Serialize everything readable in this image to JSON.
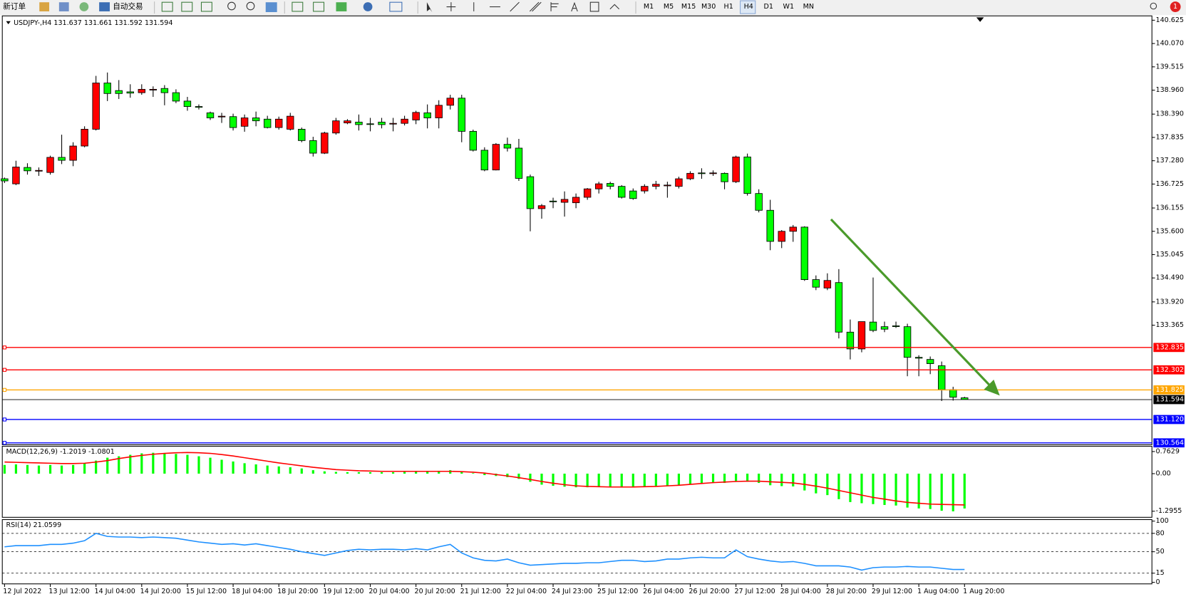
{
  "toolbar": {
    "new_order": "新订单",
    "auto_trading": "自动交易",
    "timeframes": [
      "M1",
      "M5",
      "M15",
      "M30",
      "H1",
      "H4",
      "D1",
      "W1",
      "MN"
    ],
    "notifications": 1
  },
  "chart_data": [
    {
      "type": "candlestick",
      "symbol": "USDJPY-,H4",
      "up_color": "#ff0000",
      "down_color": "#00ff00",
      "grid": false,
      "categories": [
        "12 Jul 2022",
        null,
        null,
        null,
        "13 Jul 12:00",
        null,
        null,
        null,
        "14 Jul 04:00",
        null,
        null,
        null,
        "14 Jul 20:00",
        null,
        null,
        null,
        "15 Jul 12:00",
        null,
        null,
        null,
        "18 Jul 04:00",
        null,
        null,
        null,
        "18 Jul 20:00",
        null,
        null,
        null,
        "19 Jul 12:00",
        null,
        null,
        null,
        "20 Jul 04:00",
        null,
        null,
        null,
        "20 Jul 20:00",
        null,
        null,
        null,
        "21 Jul 12:00",
        null,
        null,
        null,
        "22 Jul 04:00",
        null,
        null,
        null,
        "24 Jul 23:00",
        null,
        null,
        null,
        "25 Jul 12:00",
        null,
        null,
        null,
        "26 Jul 04:00",
        null,
        null,
        null,
        "26 Jul 20:00",
        null,
        null,
        null,
        "27 Jul 12:00",
        null,
        null,
        null,
        "28 Jul 04:00",
        null,
        null,
        null,
        "28 Jul 20:00",
        null,
        null,
        null,
        "29 Jul 12:00",
        null,
        null,
        null,
        "1 Aug 04:00",
        null,
        null,
        null,
        "1 Aug 20:00"
      ],
      "open": [
        136.85,
        136.73,
        137.12,
        137.04,
        137.0,
        137.36,
        137.29,
        137.63,
        138.03,
        139.13,
        138.95,
        138.92,
        138.9,
        138.97,
        139.0,
        138.9,
        138.7,
        138.57,
        138.42,
        138.33,
        138.33,
        138.1,
        138.3,
        138.27,
        138.07,
        138.03,
        138.03,
        137.76,
        137.46,
        137.94,
        138.18,
        138.2,
        138.16,
        138.2,
        138.16,
        138.17,
        138.25,
        138.42,
        138.3,
        138.6,
        138.77,
        137.98,
        137.53,
        137.06,
        137.67,
        137.58,
        136.9,
        136.14,
        136.32,
        136.29,
        136.28,
        136.41,
        136.61,
        136.74,
        136.67,
        136.56,
        136.56,
        136.67,
        136.69,
        136.67,
        136.85,
        136.99,
        136.98,
        136.98,
        136.78,
        137.37,
        136.5,
        136.1,
        135.36,
        135.6,
        135.7,
        134.45,
        134.25,
        134.38,
        133.2,
        132.8,
        133.44,
        133.33,
        133.35,
        133.33,
        132.6,
        132.55,
        132.4,
        131.83,
        131.637
      ],
      "high": [
        136.88,
        137.28,
        137.22,
        137.12,
        137.4,
        137.9,
        137.72,
        138.1,
        139.3,
        139.38,
        139.2,
        139.1,
        139.1,
        139.05,
        139.08,
        138.98,
        138.8,
        138.62,
        138.45,
        138.42,
        138.4,
        138.38,
        138.45,
        138.35,
        138.33,
        138.42,
        138.07,
        137.85,
        137.97,
        138.3,
        138.27,
        138.38,
        138.3,
        138.3,
        138.3,
        138.35,
        138.47,
        138.62,
        138.72,
        138.85,
        138.85,
        138.02,
        137.6,
        137.7,
        137.83,
        137.8,
        136.95,
        136.25,
        136.4,
        136.55,
        136.5,
        136.63,
        136.78,
        136.78,
        136.7,
        136.62,
        136.72,
        136.8,
        136.78,
        136.9,
        137.03,
        137.1,
        137.05,
        137.0,
        137.4,
        137.45,
        136.6,
        136.35,
        135.63,
        135.75,
        135.72,
        134.55,
        134.6,
        134.7,
        133.5,
        133.45,
        134.5,
        133.45,
        133.45,
        133.4,
        132.65,
        132.62,
        132.5,
        131.9,
        131.661
      ],
      "low": [
        136.75,
        136.7,
        136.95,
        136.92,
        136.95,
        137.2,
        137.15,
        137.6,
        138.0,
        138.7,
        138.75,
        138.78,
        138.85,
        138.8,
        138.6,
        138.65,
        138.47,
        138.5,
        138.25,
        138.18,
        138.0,
        137.97,
        138.1,
        138.05,
        138.02,
        138.0,
        137.72,
        137.38,
        137.44,
        137.9,
        138.15,
        138.0,
        137.98,
        138.05,
        137.98,
        138.12,
        138.15,
        138.05,
        138.05,
        138.5,
        137.72,
        137.5,
        137.03,
        137.05,
        137.5,
        136.8,
        135.6,
        135.9,
        136.15,
        135.95,
        136.15,
        136.35,
        136.5,
        136.6,
        136.38,
        136.35,
        136.5,
        136.6,
        136.4,
        136.62,
        136.82,
        136.85,
        136.92,
        136.6,
        136.75,
        136.45,
        136.05,
        135.15,
        135.2,
        135.35,
        134.42,
        134.2,
        134.2,
        133.05,
        132.55,
        132.72,
        133.2,
        133.2,
        133.3,
        132.15,
        132.15,
        132.2,
        131.56,
        131.57,
        131.592
      ],
      "close": [
        136.8,
        137.13,
        137.04,
        137.05,
        137.36,
        137.29,
        137.63,
        138.03,
        139.13,
        138.88,
        138.88,
        138.89,
        138.98,
        138.98,
        138.9,
        138.7,
        138.57,
        138.56,
        138.3,
        138.34,
        138.07,
        138.3,
        138.23,
        138.07,
        138.27,
        138.34,
        137.76,
        137.46,
        137.94,
        138.23,
        138.23,
        138.14,
        138.15,
        138.14,
        138.17,
        138.27,
        138.43,
        138.3,
        138.6,
        138.77,
        137.98,
        137.53,
        137.06,
        137.67,
        137.58,
        136.86,
        136.14,
        136.21,
        136.31,
        136.36,
        136.41,
        136.61,
        136.73,
        136.67,
        136.41,
        136.38,
        136.67,
        136.72,
        136.7,
        136.85,
        136.98,
        136.98,
        136.99,
        136.78,
        137.37,
        136.5,
        136.1,
        135.36,
        135.6,
        135.7,
        134.45,
        134.27,
        134.43,
        133.2,
        132.8,
        133.45,
        133.24,
        133.27,
        133.34,
        132.6,
        132.58,
        132.45,
        131.83,
        131.65,
        131.594
      ],
      "ylim": [
        130.52,
        140.71
      ],
      "yticks": [
        140.625,
        {
          "value": 140.07,
          "label": "140.070"
        },
        139.515,
        {
          "value": 138.96,
          "label": "138.960"
        },
        {
          "value": 138.39,
          "label": "138.390"
        },
        137.835,
        {
          "value": 137.28,
          "label": "137.280"
        },
        136.725,
        136.155,
        {
          "value": 135.6,
          "label": "135.600"
        },
        135.045,
        {
          "value": 134.49,
          "label": "134.490"
        },
        {
          "value": 133.92,
          "label": "133.920"
        },
        133.365
      ],
      "levels": [
        {
          "value": 132.835,
          "color": "#ff0000"
        },
        {
          "value": 132.302,
          "color": "#ff0000"
        },
        {
          "value": 131.825,
          "color": "#ffa500"
        },
        {
          "value": 131.12,
          "label": "131.120",
          "color": "#0000ff"
        },
        {
          "value": 130.564,
          "color": "#0000ff"
        }
      ]
    },
    {
      "type": "macd",
      "title": "MACD(12,26,9)",
      "color": "#00ff00",
      "signal_color": "#ff0000",
      "values": [
        0.3,
        0.32,
        0.3,
        0.28,
        0.3,
        0.28,
        0.3,
        0.35,
        0.45,
        0.55,
        0.6,
        0.65,
        0.7,
        0.72,
        0.7,
        0.68,
        0.65,
        0.6,
        0.55,
        0.48,
        0.42,
        0.36,
        0.32,
        0.28,
        0.25,
        0.22,
        0.18,
        0.12,
        0.08,
        0.06,
        0.05,
        0.05,
        0.05,
        0.05,
        0.05,
        0.06,
        0.07,
        0.08,
        0.1,
        0.12,
        0.08,
        0.02,
        -0.05,
        -0.08,
        -0.12,
        -0.18,
        -0.28,
        -0.38,
        -0.42,
        -0.45,
        -0.47,
        -0.47,
        -0.46,
        -0.47,
        -0.48,
        -0.48,
        -0.46,
        -0.44,
        -0.42,
        -0.4,
        -0.37,
        -0.34,
        -0.32,
        -0.32,
        -0.27,
        -0.28,
        -0.32,
        -0.4,
        -0.43,
        -0.44,
        -0.58,
        -0.68,
        -0.74,
        -0.88,
        -0.98,
        -1.02,
        -1.05,
        -1.08,
        -1.1,
        -1.17,
        -1.2,
        -1.22,
        -1.28,
        -1.3,
        -1.2019
      ],
      "signal": [
        0.4,
        0.39,
        0.38,
        0.37,
        0.36,
        0.35,
        0.35,
        0.36,
        0.4,
        0.45,
        0.52,
        0.58,
        0.63,
        0.67,
        0.7,
        0.72,
        0.73,
        0.72,
        0.7,
        0.66,
        0.61,
        0.55,
        0.49,
        0.43,
        0.37,
        0.32,
        0.27,
        0.22,
        0.18,
        0.14,
        0.12,
        0.1,
        0.09,
        0.08,
        0.08,
        0.08,
        0.08,
        0.08,
        0.08,
        0.08,
        0.07,
        0.05,
        0.02,
        -0.03,
        -0.08,
        -0.14,
        -0.2,
        -0.27,
        -0.33,
        -0.38,
        -0.42,
        -0.44,
        -0.45,
        -0.46,
        -0.46,
        -0.46,
        -0.45,
        -0.44,
        -0.42,
        -0.4,
        -0.37,
        -0.34,
        -0.31,
        -0.29,
        -0.27,
        -0.26,
        -0.26,
        -0.28,
        -0.3,
        -0.32,
        -0.37,
        -0.43,
        -0.5,
        -0.58,
        -0.66,
        -0.74,
        -0.82,
        -0.88,
        -0.94,
        -0.99,
        -1.02,
        -1.05,
        -1.06,
        -1.07,
        -1.0801
      ],
      "ylim": [
        -1.48,
        0.92
      ],
      "yticks": [
        0.7629,
        {
          "value": 0,
          "label": "0.00"
        },
        -1.2955
      ]
    },
    {
      "type": "line",
      "title": "RSI(14)",
      "color": "#1e90ff",
      "dashed_grid": true,
      "values": [
        58,
        60,
        60,
        60,
        62,
        62,
        64,
        68,
        80,
        75,
        74,
        74,
        73,
        74,
        73,
        72,
        69,
        66,
        64,
        62,
        63,
        61,
        63,
        60,
        57,
        54,
        50,
        47,
        44,
        48,
        52,
        54,
        53,
        54,
        54,
        53,
        55,
        53,
        58,
        62,
        48,
        40,
        36,
        35,
        38,
        32,
        28,
        29,
        30,
        31,
        31,
        32,
        32,
        34,
        36,
        36,
        34,
        35,
        38,
        38,
        40,
        41,
        40,
        40,
        53,
        42,
        38,
        35,
        33,
        34,
        31,
        27,
        27,
        27,
        25,
        20,
        24,
        25,
        25,
        26,
        25,
        25,
        23,
        21,
        21.0599
      ],
      "ylim": [
        0,
        100
      ],
      "yticks": [
        100,
        80,
        50,
        15,
        0
      ]
    }
  ]
}
